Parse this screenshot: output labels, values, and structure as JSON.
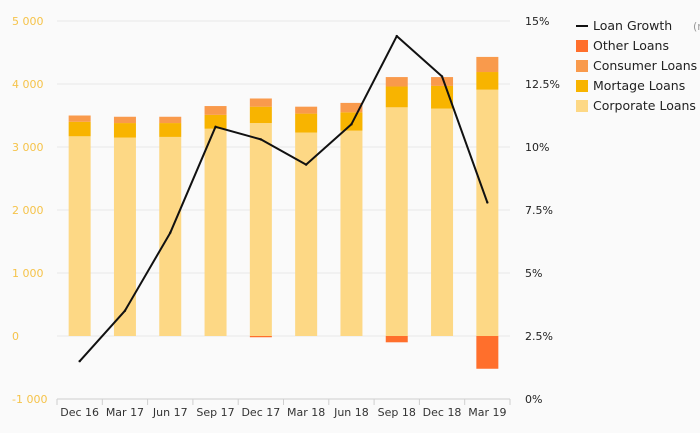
{
  "chart_data": {
    "type": "bar",
    "subtype": "stacked-bar-with-line",
    "categories": [
      "Dec 16",
      "Mar 17",
      "Jun 17",
      "Sep 17",
      "Dec 17",
      "Mar 18",
      "Jun 18",
      "Sep 18",
      "Dec 18",
      "Mar 19"
    ],
    "series": [
      {
        "name": "Corporate Loans",
        "kind": "bar",
        "axis": "left",
        "color": "#fdd885",
        "values": [
          3170,
          3150,
          3160,
          3290,
          3380,
          3230,
          3260,
          3630,
          3610,
          3910
        ]
      },
      {
        "name": "Mortage Loans",
        "kind": "bar",
        "axis": "left",
        "color": "#f8b400",
        "values": [
          230,
          230,
          220,
          220,
          260,
          300,
          290,
          330,
          360,
          280
        ]
      },
      {
        "name": "Consumer Loans",
        "kind": "bar",
        "axis": "left",
        "color": "#f99a4c",
        "values": [
          100,
          100,
          100,
          140,
          130,
          110,
          150,
          150,
          140,
          240
        ]
      },
      {
        "name": "Other Loans",
        "kind": "bar",
        "axis": "left",
        "color": "#ff6f2c",
        "values": [
          0,
          0,
          0,
          0,
          -20,
          0,
          0,
          -100,
          0,
          -520
        ]
      },
      {
        "name": "Loan Growth",
        "name_suffix": "(rhs)",
        "kind": "line",
        "axis": "right",
        "color": "#111111",
        "values": [
          1.5,
          3.5,
          6.6,
          10.8,
          10.3,
          9.3,
          10.9,
          14.4,
          12.8,
          7.8
        ]
      }
    ],
    "y_left": {
      "ylim": [
        -1000,
        5000
      ],
      "ticks": [
        -1000,
        0,
        1000,
        2000,
        3000,
        4000,
        5000
      ],
      "tick_labels": [
        "-1 000",
        "0",
        "1 000",
        "2 000",
        "3 000",
        "4 000",
        "5 000"
      ]
    },
    "y_right": {
      "ylim": [
        0,
        15
      ],
      "ticks": [
        0,
        2.5,
        5,
        7.5,
        10,
        12.5,
        15
      ],
      "tick_labels": [
        "0%",
        "2.5%",
        "5%",
        "7.5%",
        "10%",
        "12.5%",
        "15%"
      ]
    },
    "legend_order": [
      "Loan Growth",
      "Other Loans",
      "Consumer Loans",
      "Mortage Loans",
      "Corporate Loans"
    ],
    "legend_position": "top-right",
    "grid": "horizontal",
    "title": "",
    "xlabel": "",
    "ylabel": ""
  }
}
